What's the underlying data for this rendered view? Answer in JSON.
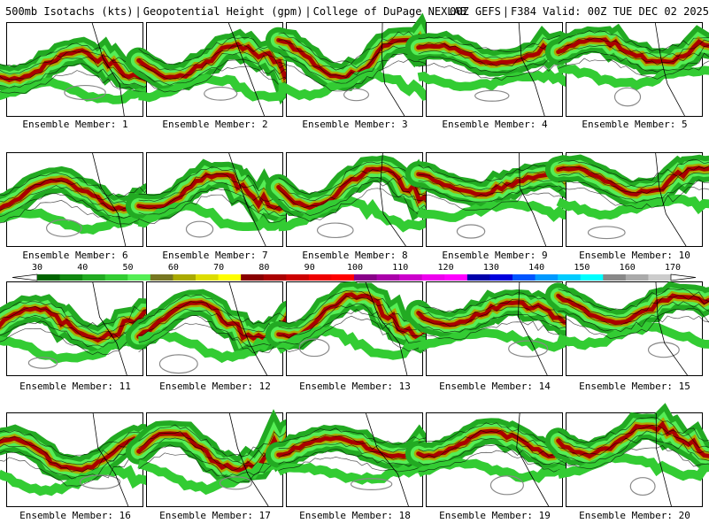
{
  "header": {
    "field": "500mb Isotachs (kts)",
    "height": "Geopotential Height (gpm)",
    "source": "College of DuPage NEXLAB",
    "run": "00Z GEFS",
    "valid": "F384 Valid: 00Z TUE DEC 02 2025"
  },
  "legend": {
    "labels": [
      "30",
      "40",
      "50",
      "60",
      "70",
      "80",
      "90",
      "100",
      "110",
      "120",
      "130",
      "140",
      "150",
      "160",
      "170"
    ],
    "colors": [
      "#006400",
      "#118811",
      "#22aa22",
      "#33cc33",
      "#55ee55",
      "#777722",
      "#aaaa00",
      "#dddd00",
      "#ffff00",
      "#880000",
      "#aa0000",
      "#cc0000",
      "#ee0000",
      "#ff0000",
      "#880088",
      "#aa00aa",
      "#cc00cc",
      "#ee00ee",
      "#ff00ff",
      "#0000aa",
      "#0000dd",
      "#0055ff",
      "#0099ff",
      "#00ccff",
      "#00ffff",
      "#888888",
      "#aaaaaa",
      "#cccccc"
    ]
  },
  "members": [
    {
      "label": "Ensemble Member: 1"
    },
    {
      "label": "Ensemble Member: 2"
    },
    {
      "label": "Ensemble Member: 3"
    },
    {
      "label": "Ensemble Member: 4"
    },
    {
      "label": "Ensemble Member: 5"
    },
    {
      "label": "Ensemble Member: 6"
    },
    {
      "label": "Ensemble Member: 7"
    },
    {
      "label": "Ensemble Member: 8"
    },
    {
      "label": "Ensemble Member: 9"
    },
    {
      "label": "Ensemble Member: 10"
    },
    {
      "label": "Ensemble Member: 11"
    },
    {
      "label": "Ensemble Member: 12"
    },
    {
      "label": "Ensemble Member: 13"
    },
    {
      "label": "Ensemble Member: 14"
    },
    {
      "label": "Ensemble Member: 15"
    },
    {
      "label": "Ensemble Member: 16"
    },
    {
      "label": "Ensemble Member: 17"
    },
    {
      "label": "Ensemble Member: 18"
    },
    {
      "label": "Ensemble Member: 19"
    },
    {
      "label": "Ensemble Member: 20"
    }
  ]
}
